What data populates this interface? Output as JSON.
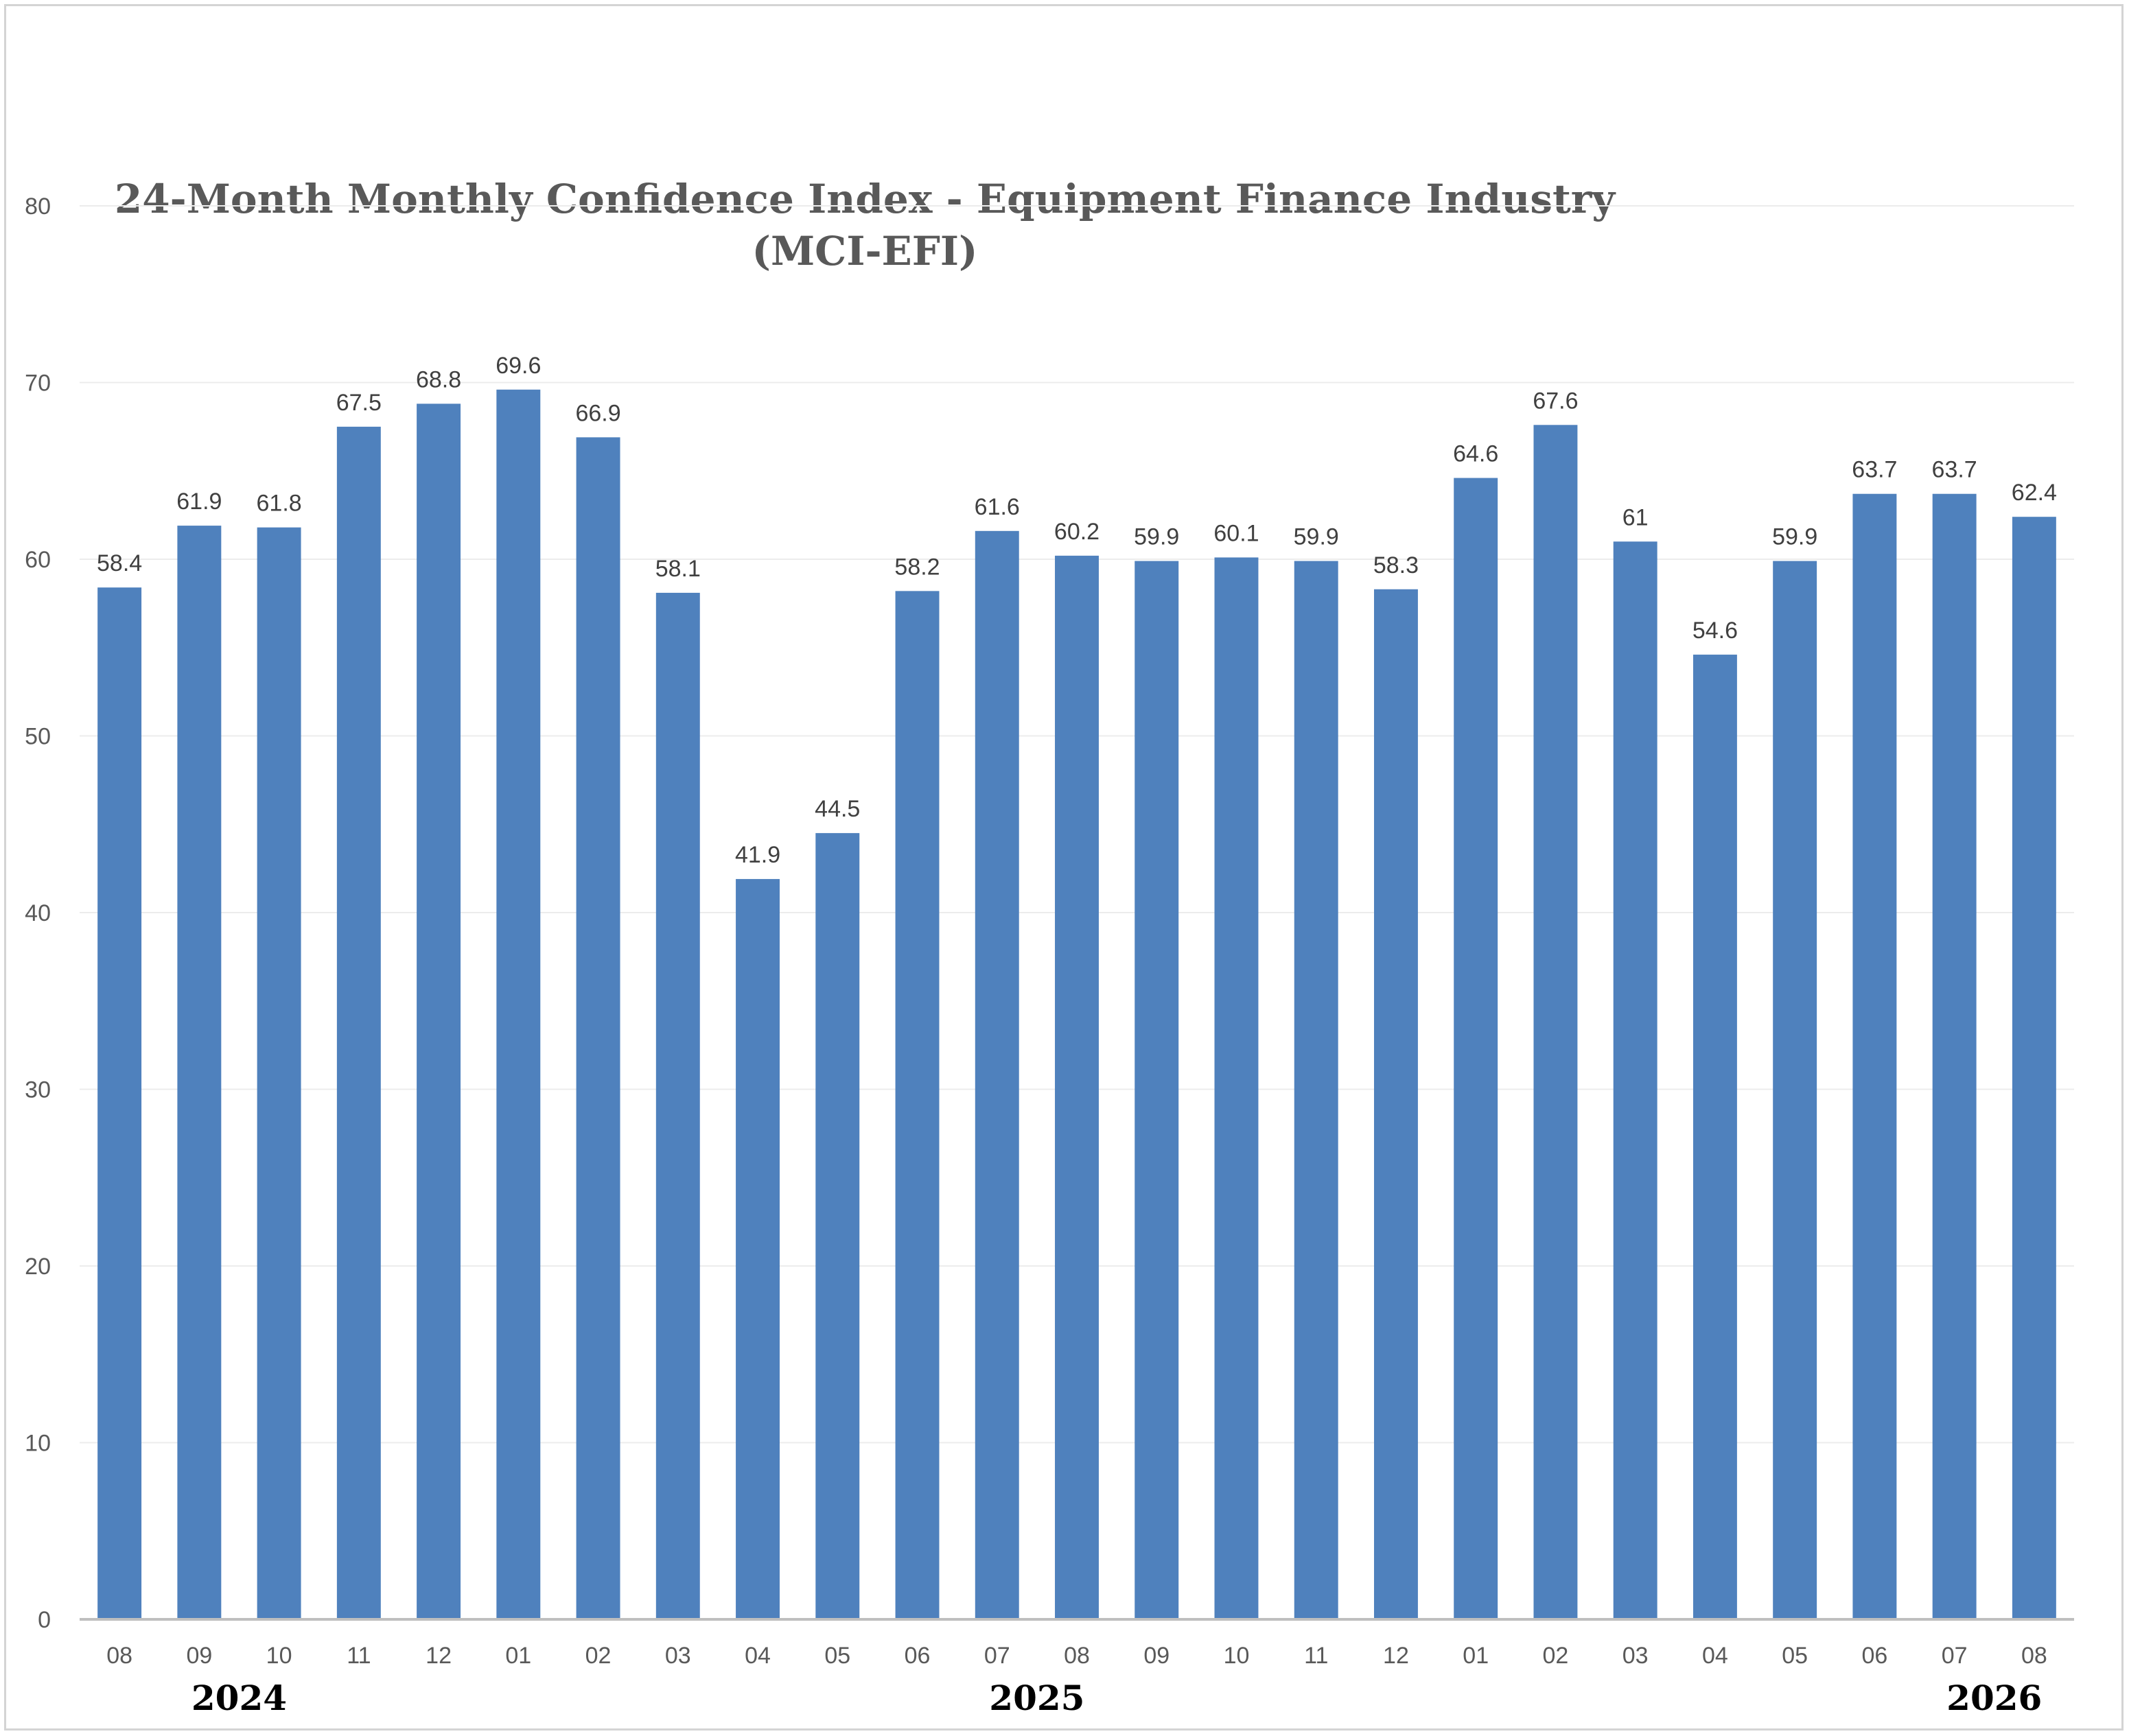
{
  "chart_data": {
    "type": "bar",
    "title": "24-Month Monthly Confidence Index - Equipment Finance Industry",
    "subtitle": "(MCI-EFI)",
    "categories": [
      "08",
      "09",
      "10",
      "11",
      "12",
      "01",
      "02",
      "03",
      "04",
      "05",
      "06",
      "07",
      "08",
      "09",
      "10",
      "11",
      "12",
      "01",
      "02",
      "03",
      "04",
      "05",
      "06",
      "07",
      "08"
    ],
    "values": [
      58.4,
      61.9,
      61.8,
      67.5,
      68.8,
      69.6,
      66.9,
      58.1,
      41.9,
      44.5,
      58.2,
      61.6,
      60.2,
      59.9,
      60.1,
      59.9,
      58.3,
      64.6,
      67.6,
      61,
      54.6,
      59.9,
      63.7,
      63.7,
      62.4
    ],
    "value_labels": [
      "58.4",
      "61.9",
      "61.8",
      "67.5",
      "68.8",
      "69.6",
      "66.9",
      "58.1",
      "41.9",
      "44.5",
      "58.2",
      "61.6",
      "60.2",
      "59.9",
      "60.1",
      "59.9",
      "58.3",
      "64.6",
      "67.6",
      "61",
      "54.6",
      "59.9",
      "63.7",
      "63.7",
      "62.4"
    ],
    "year_labels": [
      {
        "text": "2024",
        "category_index": 1.5
      },
      {
        "text": "2025",
        "category_index": 11.5
      },
      {
        "text": "2026",
        "category_index": 23.5
      }
    ],
    "ylim": [
      0,
      80
    ],
    "yticks": [
      0,
      10,
      20,
      30,
      40,
      50,
      60,
      70,
      80
    ],
    "xlabel": "",
    "ylabel": "",
    "grid": true,
    "bar_color": "#4f81bd"
  }
}
